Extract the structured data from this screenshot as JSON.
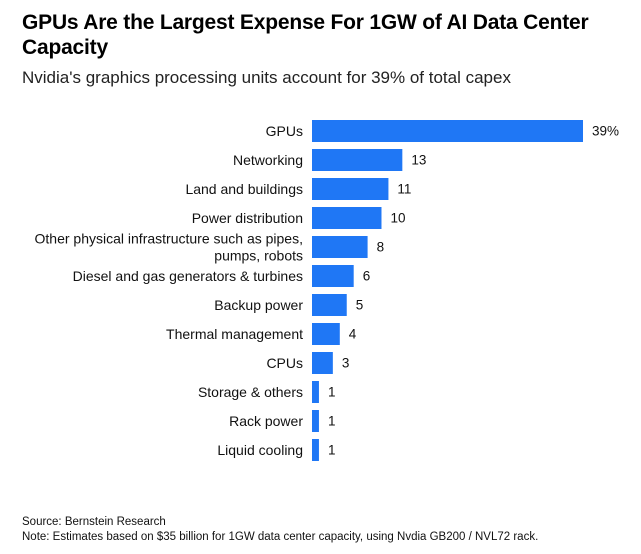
{
  "chart_data": {
    "type": "bar",
    "orientation": "horizontal",
    "title": "GPUs Are the Largest Expense For 1GW of AI Data Center Capacity",
    "subtitle": "Nvidia's graphics processing units account for 39% of total capex",
    "categories": [
      "GPUs",
      "Networking",
      "Land and buildings",
      "Power distribution",
      "Other physical infrastructure such as pipes, pumps, robots",
      "Diesel and gas generators & turbines",
      "Backup power",
      "Thermal management",
      "CPUs",
      "Storage & others",
      "Rack power",
      "Liquid cooling"
    ],
    "category_lines": [
      [
        "GPUs"
      ],
      [
        "Networking"
      ],
      [
        "Land and buildings"
      ],
      [
        "Power distribution"
      ],
      [
        "Other physical infrastructure such as pipes,",
        "pumps, robots"
      ],
      [
        "Diesel and gas generators & turbines"
      ],
      [
        "Backup power"
      ],
      [
        "Thermal management"
      ],
      [
        "CPUs"
      ],
      [
        "Storage & others"
      ],
      [
        "Rack power"
      ],
      [
        "Liquid cooling"
      ]
    ],
    "values": [
      39,
      13,
      11,
      10,
      8,
      6,
      5,
      4,
      3,
      1,
      1,
      1
    ],
    "value_labels": [
      "39%",
      "13",
      "11",
      "10",
      "8",
      "6",
      "5",
      "4",
      "3",
      "1",
      "1",
      "1"
    ],
    "unit": "%",
    "xlim": [
      0,
      39
    ],
    "grid": false,
    "legend": "none",
    "bar_color": "#1f77f5",
    "source": "Source: Bernstein Research",
    "note": "Note: Estimates based on $35 billion for 1GW data center capacity, using Nvdia GB200 / NVL72 rack."
  }
}
